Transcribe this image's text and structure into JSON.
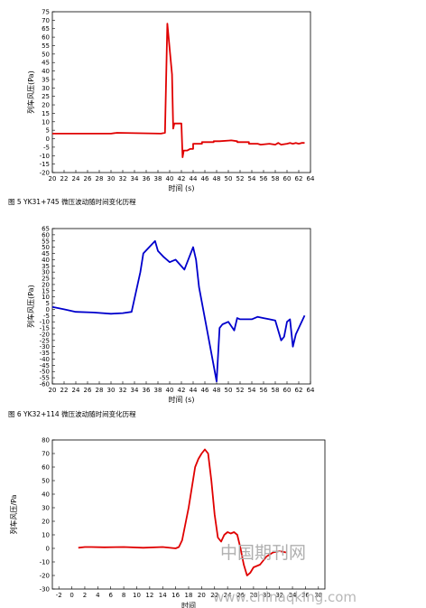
{
  "chart_data": [
    {
      "type": "line",
      "caption": "图 5   YK31+745 微压波动随时间变化历程",
      "xlabel": "时间 (s)",
      "ylabel": "列车风压(Pa)",
      "xlim": [
        20,
        64
      ],
      "ylim": [
        -20,
        75
      ],
      "xticks": [
        20,
        22,
        24,
        26,
        28,
        30,
        32,
        34,
        36,
        38,
        40,
        42,
        44,
        46,
        48,
        50,
        52,
        54,
        56,
        58,
        60,
        62,
        64
      ],
      "yticks": [
        -20,
        -15,
        -10,
        -5,
        0,
        5,
        10,
        15,
        20,
        25,
        30,
        35,
        40,
        45,
        50,
        55,
        60,
        65,
        70,
        75
      ],
      "color": "#e00000",
      "grid": false,
      "series": [
        {
          "x": [
            20,
            30,
            31,
            38.5,
            39.2,
            39.6,
            40.4,
            40.6,
            40.8,
            41.0,
            42.0,
            42.2,
            42.4,
            43.0,
            43.5,
            44.0,
            44.0,
            45.5,
            45.5,
            47.5,
            47.5,
            48.5,
            50.5,
            51.5,
            51.5,
            53.5,
            53.5,
            55,
            55.5,
            57,
            58,
            58.5,
            59,
            60,
            60.5,
            61,
            61.5,
            62,
            62.5,
            63
          ],
          "y": [
            3,
            3,
            3.5,
            3,
            3.5,
            68,
            38,
            6,
            9,
            9,
            9,
            -11,
            -7,
            -7,
            -6,
            -6,
            -3,
            -3,
            -2,
            -2,
            -1.5,
            -1.5,
            -1,
            -1.5,
            -2,
            -2,
            -3,
            -3,
            -3.5,
            -3,
            -3.5,
            -2.5,
            -3.5,
            -3,
            -2.5,
            -3,
            -2.5,
            -3,
            -2.5,
            -2.5
          ]
        }
      ]
    },
    {
      "type": "line",
      "caption": "图 6 YK32+114 微压波动随时间变化历程",
      "xlabel": "时间 (s)",
      "ylabel": "列车风压(Pa)",
      "xlim": [
        20,
        64
      ],
      "ylim": [
        -60,
        65
      ],
      "xticks": [
        20,
        22,
        24,
        26,
        28,
        30,
        32,
        34,
        36,
        38,
        40,
        42,
        44,
        46,
        48,
        50,
        52,
        54,
        56,
        58,
        60,
        62,
        64
      ],
      "yticks": [
        -60,
        -55,
        -50,
        -45,
        -40,
        -35,
        -30,
        -25,
        -20,
        -15,
        -10,
        -5,
        0,
        5,
        10,
        15,
        20,
        25,
        30,
        35,
        40,
        45,
        50,
        55,
        60,
        65
      ],
      "color": "#0000cc",
      "grid": false,
      "series": [
        {
          "x": [
            20,
            22,
            24,
            27,
            30,
            32,
            33.5,
            35,
            35.5,
            37.5,
            38,
            39,
            40,
            41,
            42.5,
            44,
            44.5,
            45,
            46.5,
            48,
            48.5,
            49,
            50,
            51,
            51.5,
            52,
            53,
            54,
            55,
            56,
            57,
            58,
            59,
            59.5,
            60,
            60.5,
            61,
            61.5,
            62,
            63
          ],
          "y": [
            2,
            0,
            -2,
            -2.5,
            -3.5,
            -3,
            -2,
            30,
            45,
            55,
            47,
            42,
            38,
            40,
            32,
            50,
            40,
            18,
            -20,
            -58,
            -15,
            -12,
            -10,
            -17,
            -7,
            -8,
            -8,
            -8,
            -6,
            -7,
            -8,
            -9,
            -25,
            -22,
            -10,
            -8,
            -30,
            -20,
            -15,
            -5
          ]
        }
      ]
    },
    {
      "type": "line",
      "caption": "",
      "xlabel": "时间",
      "ylabel": "列车风压/Pa",
      "xlim": [
        -3,
        39
      ],
      "ylim": [
        -30,
        80
      ],
      "xticks": [
        -2,
        0,
        2,
        4,
        6,
        8,
        10,
        12,
        14,
        16,
        18,
        20,
        22,
        24,
        26,
        28,
        30,
        32,
        34,
        36,
        38
      ],
      "yticks": [
        -30,
        -20,
        -10,
        0,
        10,
        20,
        30,
        40,
        50,
        60,
        70,
        80
      ],
      "color": "#e00000",
      "grid": false,
      "series": [
        {
          "x": [
            1,
            2,
            3,
            5,
            8,
            11,
            14,
            16,
            16.5,
            17,
            18,
            19,
            19.5,
            20,
            20.5,
            21,
            21.5,
            22,
            22.5,
            23,
            23.5,
            24,
            24.5,
            25,
            25.5,
            26,
            26.5,
            27,
            27.5,
            28,
            29,
            30,
            31,
            32,
            33
          ],
          "y": [
            0.5,
            1,
            1,
            0.8,
            1,
            0.5,
            1,
            0,
            1,
            6,
            30,
            60,
            66,
            70,
            73,
            70,
            50,
            25,
            8,
            5,
            10,
            12,
            11,
            12,
            10,
            0,
            -12,
            -20,
            -18,
            -14,
            -12,
            -6,
            -3,
            -2,
            -3
          ]
        }
      ]
    }
  ],
  "watermark": {
    "line1": "中国期刊网",
    "line2": "www.chinaqking.com"
  }
}
